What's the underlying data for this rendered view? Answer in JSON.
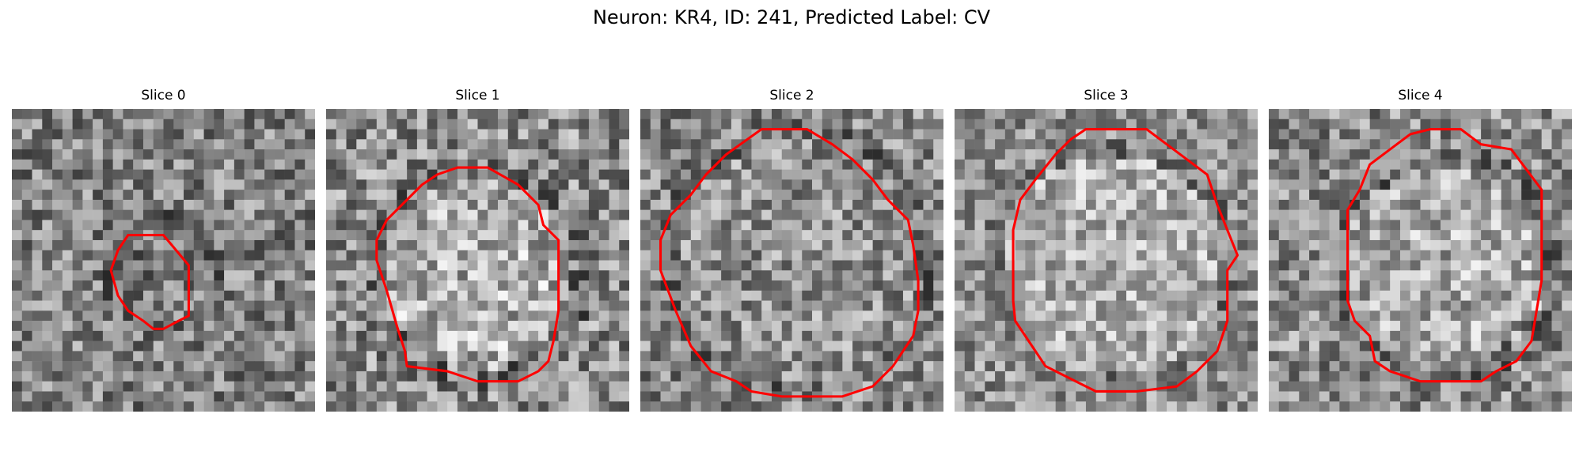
{
  "figure": {
    "title": "Neuron: KR4, ID: 241, Predicted Label: CV"
  },
  "panels": [
    {
      "title": "Slice 0"
    },
    {
      "title": "Slice 1"
    },
    {
      "title": "Slice 2"
    },
    {
      "title": "Slice 3"
    },
    {
      "title": "Slice 4"
    }
  ],
  "colors": {
    "contour": "#ff0000",
    "colormap": "gray"
  }
}
